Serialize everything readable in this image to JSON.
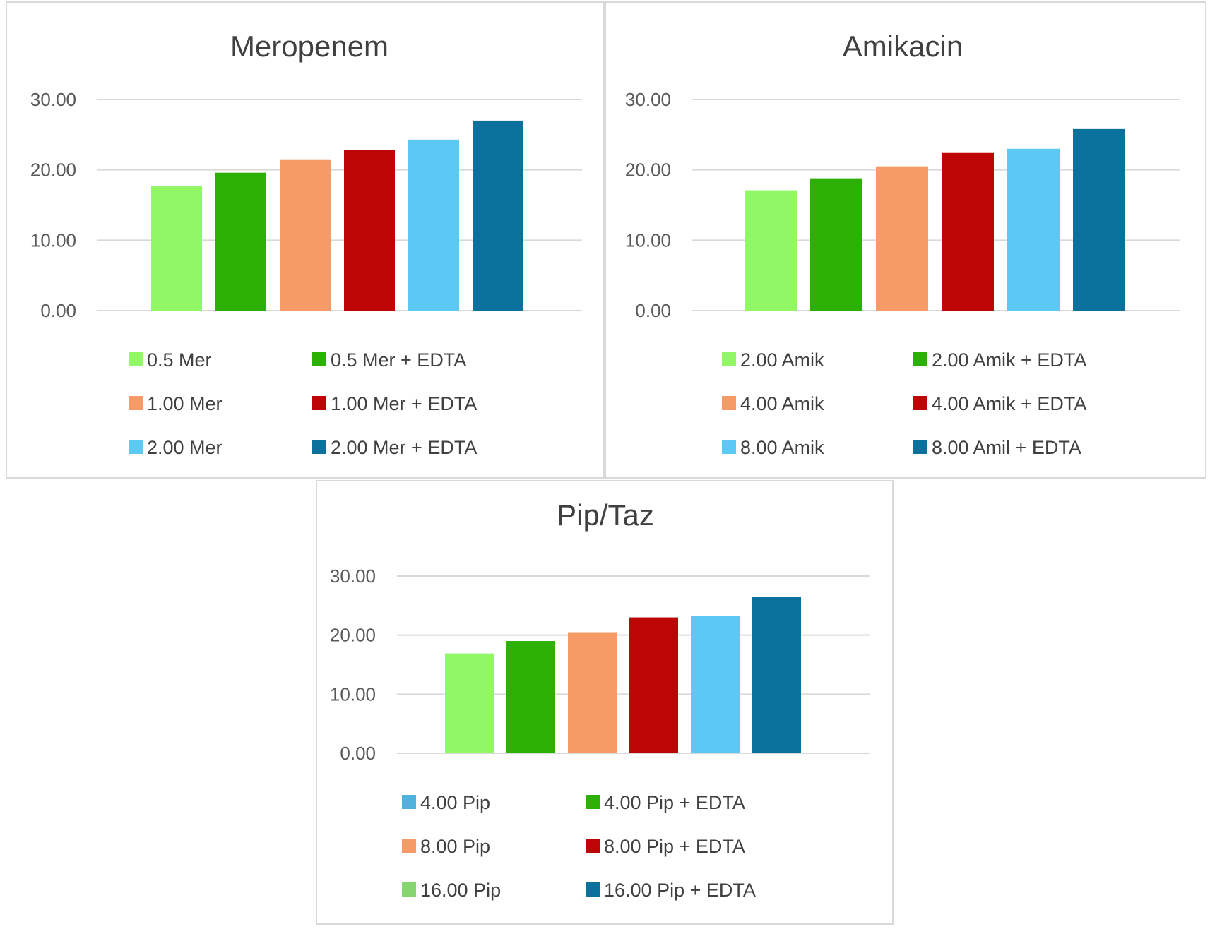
{
  "chart_data": [
    {
      "type": "bar",
      "title": "Meropenem",
      "ylim": [
        0,
        30
      ],
      "y_ticks": [
        "0.00",
        "10.00",
        "20.00",
        "30.00"
      ],
      "grid": true,
      "legend_position": "bottom",
      "series": [
        {
          "name": "0.5 Mer",
          "value": 17.7,
          "color": "#92f765"
        },
        {
          "name": "0.5 Mer + EDTA",
          "value": 19.6,
          "color": "#2db004"
        },
        {
          "name": "1.00 Mer",
          "value": 21.5,
          "color": "#f79b66"
        },
        {
          "name": "1.00 Mer + EDTA",
          "value": 22.8,
          "color": "#bd0505"
        },
        {
          "name": "2.00 Mer",
          "value": 24.3,
          "color": "#5cc9f5"
        },
        {
          "name": "2.00 Mer + EDTA",
          "value": 27.0,
          "color": "#0a709c"
        }
      ]
    },
    {
      "type": "bar",
      "title": "Amikacin",
      "ylim": [
        0,
        30
      ],
      "y_ticks": [
        "0.00",
        "10.00",
        "20.00",
        "30.00"
      ],
      "grid": true,
      "legend_position": "bottom",
      "series": [
        {
          "name": "2.00 Amik",
          "value": 17.1,
          "color": "#92f765"
        },
        {
          "name": "2.00 Amik + EDTA",
          "value": 18.8,
          "color": "#2db004"
        },
        {
          "name": "4.00 Amik",
          "value": 20.5,
          "color": "#f79b66"
        },
        {
          "name": "4.00 Amik + EDTA",
          "value": 22.4,
          "color": "#bd0505"
        },
        {
          "name": "8.00 Amik",
          "value": 23.0,
          "color": "#5cc9f5"
        },
        {
          "name": "8.00 Amil + EDTA",
          "value": 25.8,
          "color": "#0a709c"
        }
      ]
    },
    {
      "type": "bar",
      "title": "Pip/Taz",
      "ylim": [
        0,
        30
      ],
      "y_ticks": [
        "0.00",
        "10.00",
        "20.00",
        "30.00"
      ],
      "grid": true,
      "legend_position": "bottom",
      "series": [
        {
          "name": "4.00 Pip",
          "value": 16.9,
          "color": "#92f765",
          "legend_color": "#4fb2dd"
        },
        {
          "name": "4.00 Pip + EDTA",
          "value": 19.0,
          "color": "#2db004"
        },
        {
          "name": "8.00 Pip",
          "value": 20.5,
          "color": "#f79b66"
        },
        {
          "name": "8.00 Pip + EDTA",
          "value": 23.0,
          "color": "#bd0505"
        },
        {
          "name": "16.00 Pip",
          "value": 23.3,
          "color": "#5cc9f5",
          "legend_color": "#86d670"
        },
        {
          "name": "16.00 Pip + EDTA",
          "value": 26.5,
          "color": "#0a709c"
        }
      ]
    }
  ]
}
